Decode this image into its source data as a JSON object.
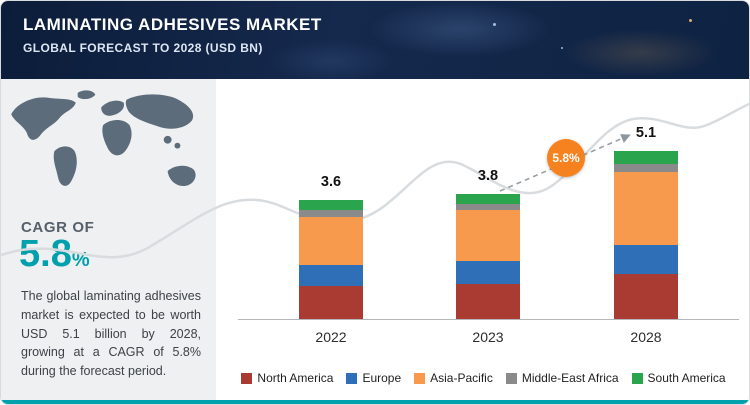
{
  "header": {
    "title": "LAMINATING ADHESIVES MARKET",
    "subtitle": "GLOBAL FORECAST TO 2028 (USD BN)"
  },
  "sidebar": {
    "cagr_label": "CAGR OF",
    "cagr_value": "5.8",
    "cagr_unit": "%",
    "description": "The global laminating adhesives market is expected to be worth USD 5.1 billion by 2028, growing at a CAGR of 5.8% during the forecast period."
  },
  "chart_data": {
    "type": "bar",
    "stacked": true,
    "title": "Laminating Adhesives Market, Global Forecast to 2028",
    "ylabel": "USD BN",
    "legend_position": "bottom",
    "grid": false,
    "categories": [
      "2022",
      "2023",
      "2028"
    ],
    "totals": [
      3.6,
      3.8,
      5.1
    ],
    "series": [
      {
        "name": "North America",
        "color": "#a93b32",
        "values": [
          1.0,
          1.05,
          1.35
        ]
      },
      {
        "name": "Europe",
        "color": "#2e6fb7",
        "values": [
          0.65,
          0.7,
          0.9
        ]
      },
      {
        "name": "Asia-Pacific",
        "color": "#f79a4e",
        "values": [
          1.45,
          1.55,
          2.2
        ]
      },
      {
        "name": "Middle-East Africa",
        "color": "#8a8a8a",
        "values": [
          0.2,
          0.2,
          0.25
        ]
      },
      {
        "name": "South America",
        "color": "#2aa44d",
        "values": [
          0.3,
          0.3,
          0.4
        ]
      }
    ],
    "growth_badge": "5.8%"
  },
  "colors": {
    "accent_teal": "#00a0ad",
    "badge_orange": "#f5821f",
    "header_navy": "#13294c"
  }
}
